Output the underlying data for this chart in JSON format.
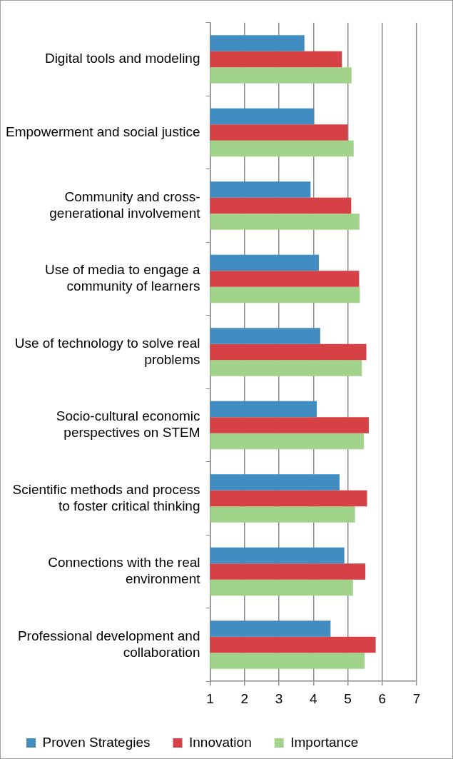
{
  "chart_data": {
    "type": "bar",
    "orientation": "horizontal",
    "categories": [
      "Digital tools and modeling",
      "Empowerment and social justice",
      "Community and cross-generational involvement",
      "Use of media to engage a community of learners",
      "Use of technology to solve real problems",
      "Socio-cultural economic perspectives on STEM ",
      "Scientific methods and process to foster critical thinking",
      "Connections with the real environment ",
      "Professional development and collaboration"
    ],
    "series": [
      {
        "name": "Proven Strategies",
        "color": "#418cc0",
        "values": [
          3.74,
          4.02,
          3.92,
          4.16,
          4.2,
          4.1,
          4.76,
          4.9,
          4.5
        ]
      },
      {
        "name": "Innovation",
        "color": "#d64145",
        "values": [
          4.83,
          5.0,
          5.1,
          5.33,
          5.54,
          5.61,
          5.56,
          5.51,
          5.81
        ]
      },
      {
        "name": "Importance",
        "color": "#a1d48a",
        "values": [
          5.11,
          5.17,
          5.34,
          5.35,
          5.41,
          5.47,
          5.21,
          5.15,
          5.49
        ]
      }
    ],
    "xlim": [
      1,
      7
    ],
    "xticks": [
      1,
      2,
      3,
      4,
      5,
      6,
      7
    ],
    "grid": "x",
    "legend": "bottom"
  }
}
